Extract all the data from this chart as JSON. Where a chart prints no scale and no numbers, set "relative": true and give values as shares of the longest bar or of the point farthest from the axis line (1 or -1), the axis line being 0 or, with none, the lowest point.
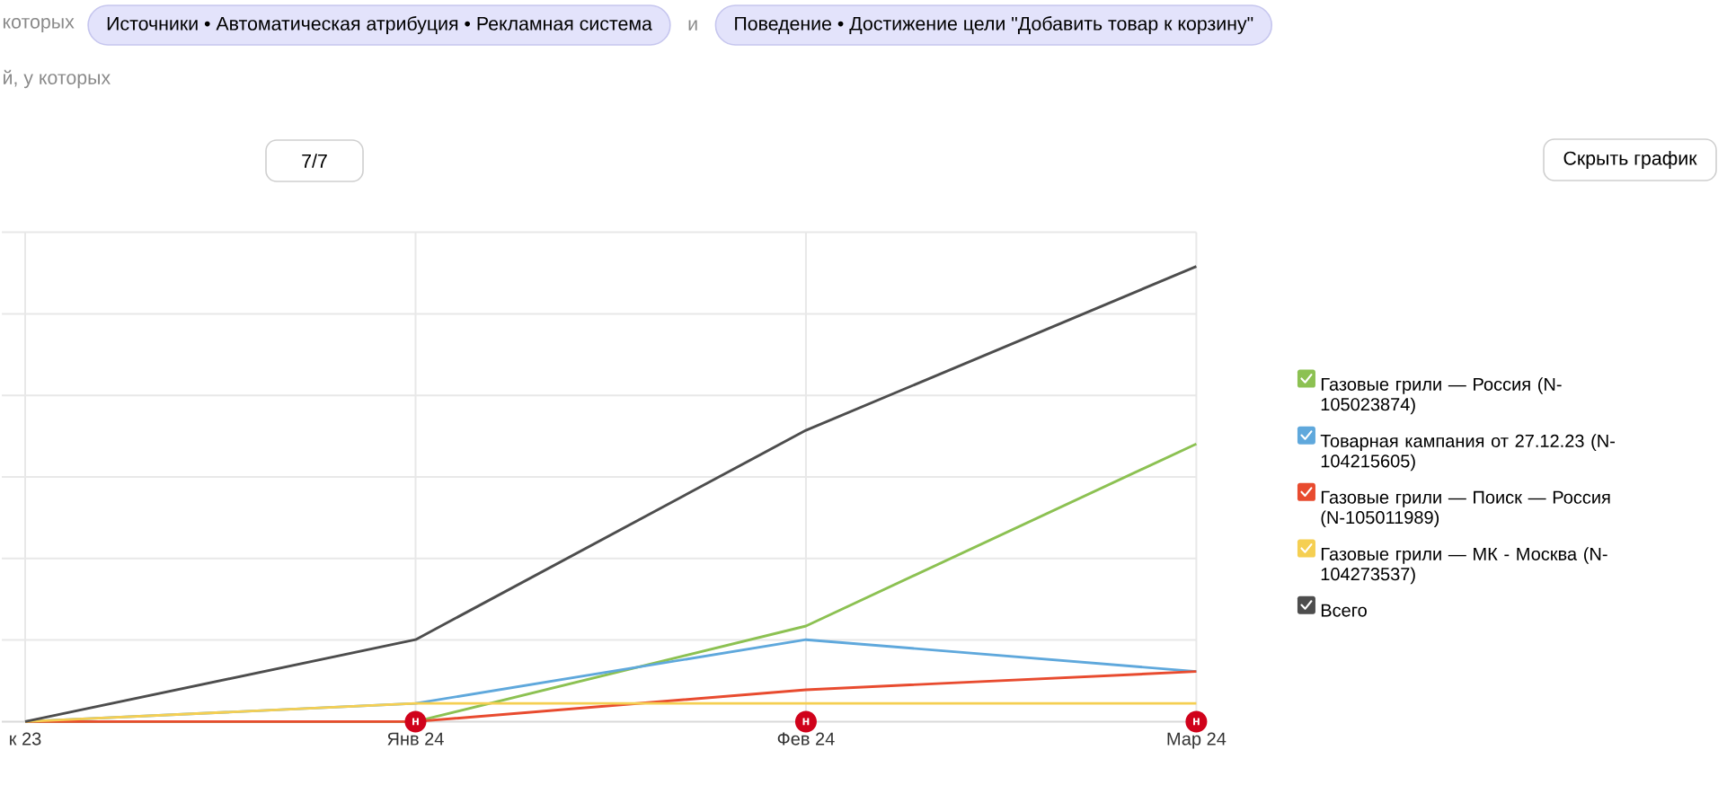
{
  "chart_data": {
    "type": "line",
    "relative": true,
    "categories": [
      "к 23",
      "Янв 24",
      "Фев 24",
      "Мар 24"
    ],
    "series": [
      {
        "name": "Газовые грили — Россия (N-105023874)",
        "color": "#8cc152",
        "values": [
          0,
          0,
          0.21,
          0.61
        ]
      },
      {
        "name": "Товарная кампания от 27.12.23 (N-104215605)",
        "color": "#5fa8dc",
        "values": [
          0,
          0.04,
          0.18,
          0.11
        ]
      },
      {
        "name": "Газовые грили — Поиск — Россия (N-105011989)",
        "color": "#e84b2f",
        "values": [
          0,
          0,
          0.07,
          0.11
        ]
      },
      {
        "name": "Газовые грили — МК - Москва (N-104273537)",
        "color": "#f5cf52",
        "values": [
          0,
          0.04,
          0.04,
          0.04
        ]
      },
      {
        "name": "Всего",
        "color": "#4d4d4d",
        "values": [
          0,
          0.18,
          0.64,
          1
        ]
      }
    ],
    "grid": true,
    "legend": "right",
    "annotations": [
      "которых",
      "Источники • Автоматическая атрибуция • Рекламная система",
      "и",
      "Поведение • Достижение цели \"Добавить товар к корзину\"",
      "й, у которых",
      "7/7",
      "Скрыть график",
      {
        "text": "н",
        "x": "Янв 24",
        "y": 0
      },
      {
        "text": "н",
        "x": "Фев 24",
        "y": 0
      },
      {
        "text": "н",
        "x": "Мар 24",
        "y": 0
      }
    ]
  }
}
